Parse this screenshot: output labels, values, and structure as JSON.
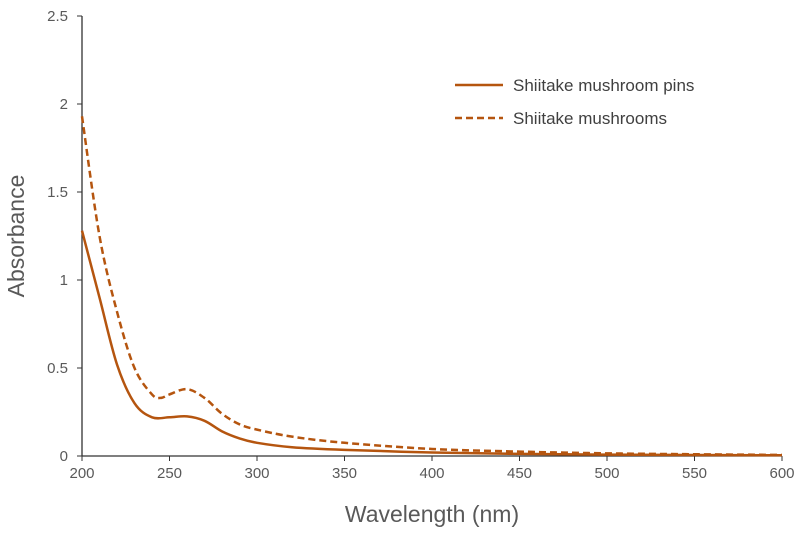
{
  "chart_data": {
    "type": "line",
    "title": "",
    "xlabel": "Wavelength (nm)",
    "ylabel": "Absorbance",
    "xlim": [
      200,
      600
    ],
    "ylim": [
      0,
      2.5
    ],
    "xticks": [
      200,
      250,
      300,
      350,
      400,
      450,
      500,
      550,
      600
    ],
    "yticks": [
      0,
      0.5,
      1,
      1.5,
      2,
      2.5
    ],
    "ytick_labels": [
      "0",
      "0.5",
      "1",
      "1.5",
      "2",
      "2.5"
    ],
    "grid": false,
    "legend_placement": "top-right",
    "color": "#b5550f",
    "series": [
      {
        "name": "Shiitake mushroom pins",
        "style": "solid",
        "x": [
          200,
          210,
          220,
          230,
          240,
          250,
          260,
          270,
          280,
          290,
          300,
          320,
          350,
          400,
          450,
          500,
          550,
          600
        ],
        "y": [
          1.28,
          0.9,
          0.52,
          0.3,
          0.22,
          0.22,
          0.225,
          0.2,
          0.14,
          0.1,
          0.075,
          0.05,
          0.035,
          0.02,
          0.012,
          0.008,
          0.006,
          0.004
        ]
      },
      {
        "name": "Shiitake mushrooms",
        "style": "dashed",
        "x": [
          200,
          210,
          220,
          230,
          240,
          245,
          250,
          260,
          270,
          280,
          290,
          300,
          320,
          350,
          400,
          450,
          500,
          550,
          600
        ],
        "y": [
          1.93,
          1.25,
          0.82,
          0.5,
          0.35,
          0.33,
          0.35,
          0.38,
          0.33,
          0.24,
          0.18,
          0.15,
          0.11,
          0.075,
          0.04,
          0.025,
          0.015,
          0.01,
          0.006
        ]
      }
    ]
  }
}
